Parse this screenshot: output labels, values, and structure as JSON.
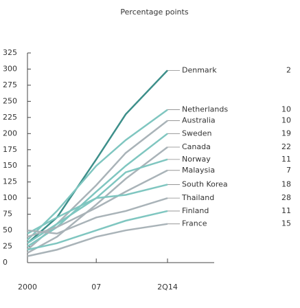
{
  "chart_data": {
    "type": "line",
    "title": "Percentage points",
    "x": [
      2000,
      2003,
      2007,
      2010,
      2014.25
    ],
    "xlim": [
      2000,
      2019
    ],
    "xticks": [
      2000,
      {
        "value": 2007,
        "label": "07"
      },
      {
        "value": 2014.25,
        "label": "2Q14"
      }
    ],
    "ylim": [
      0,
      325
    ],
    "yticks": [
      0,
      25,
      50,
      75,
      100,
      125,
      150,
      175,
      200,
      225,
      250,
      275,
      300,
      325
    ],
    "series": [
      {
        "name": "Denmark",
        "rank": 2,
        "color": "#3d8f8a",
        "values": [
          30,
          70,
          160,
          230,
          298
        ]
      },
      {
        "name": "Netherlands",
        "rank": 10,
        "color": "#7fc6c0",
        "values": [
          35,
          80,
          150,
          190,
          237
        ]
      },
      {
        "name": "Australia",
        "rank": 10,
        "color": "#a9b3b8",
        "values": [
          20,
          60,
          120,
          170,
          220
        ]
      },
      {
        "name": "Sweden",
        "rank": 19,
        "color": "#7fc6c0",
        "values": [
          25,
          55,
          110,
          150,
          200
        ]
      },
      {
        "name": "Canada",
        "rank": 22,
        "color": "#a9b3b8",
        "values": [
          15,
          40,
          90,
          130,
          179
        ]
      },
      {
        "name": "Norway",
        "rank": 11,
        "color": "#7fc6c0",
        "values": [
          30,
          60,
          100,
          140,
          160
        ]
      },
      {
        "name": "Malaysia",
        "rank": 7,
        "color": "#a9b3b8",
        "values": [
          40,
          55,
          85,
          110,
          143
        ]
      },
      {
        "name": "South Korea",
        "rank": 18,
        "color": "#7fc6c0",
        "values": [
          45,
          70,
          100,
          105,
          121
        ]
      },
      {
        "name": "Thailand",
        "rank": 28,
        "color": "#a9b3b8",
        "values": [
          50,
          45,
          70,
          80,
          100
        ]
      },
      {
        "name": "Finland",
        "rank": 11,
        "color": "#7fc6c0",
        "values": [
          20,
          30,
          50,
          65,
          80
        ]
      },
      {
        "name": "France",
        "rank": 15,
        "color": "#a9b3b8",
        "values": [
          10,
          20,
          40,
          50,
          60
        ]
      }
    ]
  }
}
